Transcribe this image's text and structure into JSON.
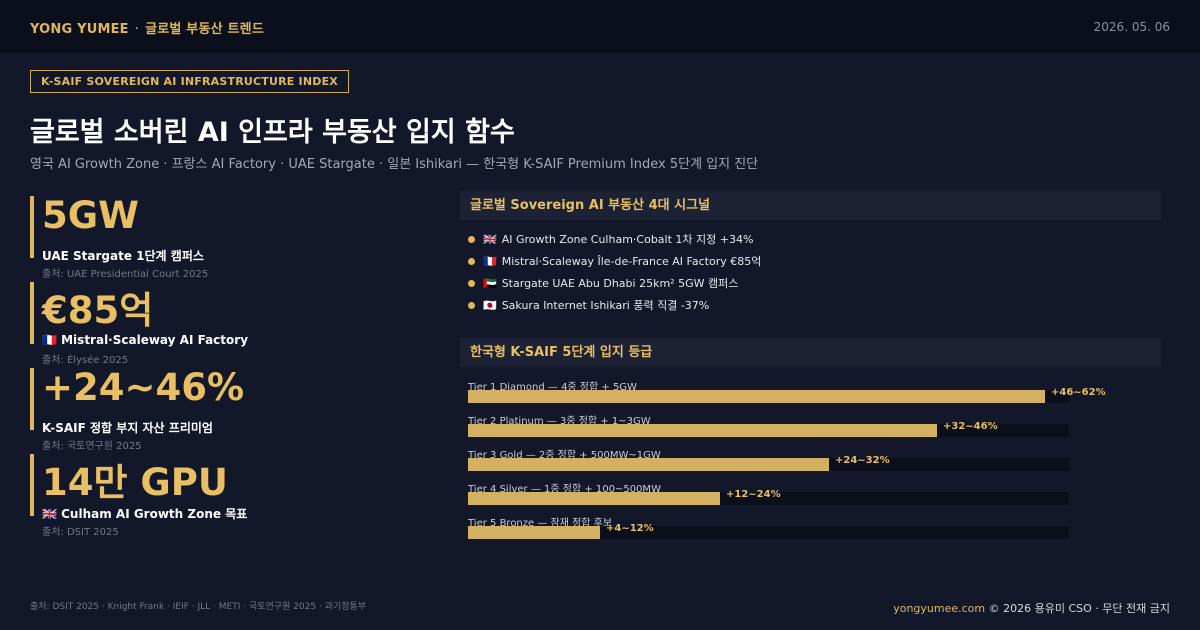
{
  "header": {
    "brand": "YONG YUMEE",
    "section": "글로벌 부동산 트렌드",
    "date": "2026. 05. 06"
  },
  "tag": "K-SAIF SOVEREIGN AI INFRASTRUCTURE INDEX",
  "title": "글로벌 소버린 AI 인프라 부동산 입지 함수",
  "subtitle": "영국 AI Growth Zone · 프랑스 AI Factory · UAE Stargate · 일본 Ishikari — 한국형 K-SAIF Premium Index 5단계 입지 진단",
  "kpis": [
    {
      "value": "5GW",
      "label": "UAE Stargate 1단계 캠퍼스",
      "source": "출처: UAE Presidential Court 2025"
    },
    {
      "value": "€85억",
      "label": "🇫🇷 Mistral·Scaleway AI Factory",
      "source": "출처: Élysée 2025"
    },
    {
      "value": "+24~46%",
      "label": "K-SAIF 정합 부지 자산 프리미엄",
      "source": "출처: 국토연구원 2025"
    },
    {
      "value": "14만 GPU",
      "label": "🇬🇧 Culham AI Growth Zone 목표",
      "source": "출처: DSIT 2025"
    }
  ],
  "signals_panel": {
    "title": "글로벌 Sovereign AI 부동산 4대 시그널",
    "items": [
      {
        "flag": "🇬🇧",
        "text": "AI Growth Zone Culham·Cobalt 1차 지정 +34%"
      },
      {
        "flag": "🇫🇷",
        "text": "Mistral·Scaleway Île-de-France AI Factory €85억"
      },
      {
        "flag": "🇦🇪",
        "text": "Stargate UAE Abu Dhabi 25km² 5GW 캠퍼스"
      },
      {
        "flag": "🇯🇵",
        "text": "Sakura Internet Ishikari 풍력 직결 -37%"
      }
    ]
  },
  "tiers_panel": {
    "title": "한국형 K-SAIF 5단계 입지 등급",
    "tiers": [
      {
        "label": "Tier 1 Diamond — 4중 정합 + 5GW",
        "value": "+46~62%",
        "level": 0.96
      },
      {
        "label": "Tier 2 Platinum — 3중 정합 + 1~3GW",
        "value": "+32~46%",
        "level": 0.78
      },
      {
        "label": "Tier 3 Gold — 2중 정합 + 500MW~1GW",
        "value": "+24~32%",
        "level": 0.6
      },
      {
        "label": "Tier 4 Silver — 1중 정합 + 100~500MW",
        "value": "+12~24%",
        "level": 0.42
      },
      {
        "label": "Tier 5 Bronze — 잠재 정합 후보",
        "value": "+4~12%",
        "level": 0.22
      }
    ]
  },
  "footer": {
    "sources": "출처: DSIT 2025 · Knight Frank · IEIF · JLL · METI · 국토연구원 2025 · 과기정통부",
    "site": "yongyumee.com",
    "copyright": "© 2026 용유미 CSO · 무단 전재 금지"
  },
  "colors": {
    "accent": "#e0b75c",
    "background": "#12182a",
    "panel": "#1c2234",
    "track": "#0b0f1c"
  }
}
